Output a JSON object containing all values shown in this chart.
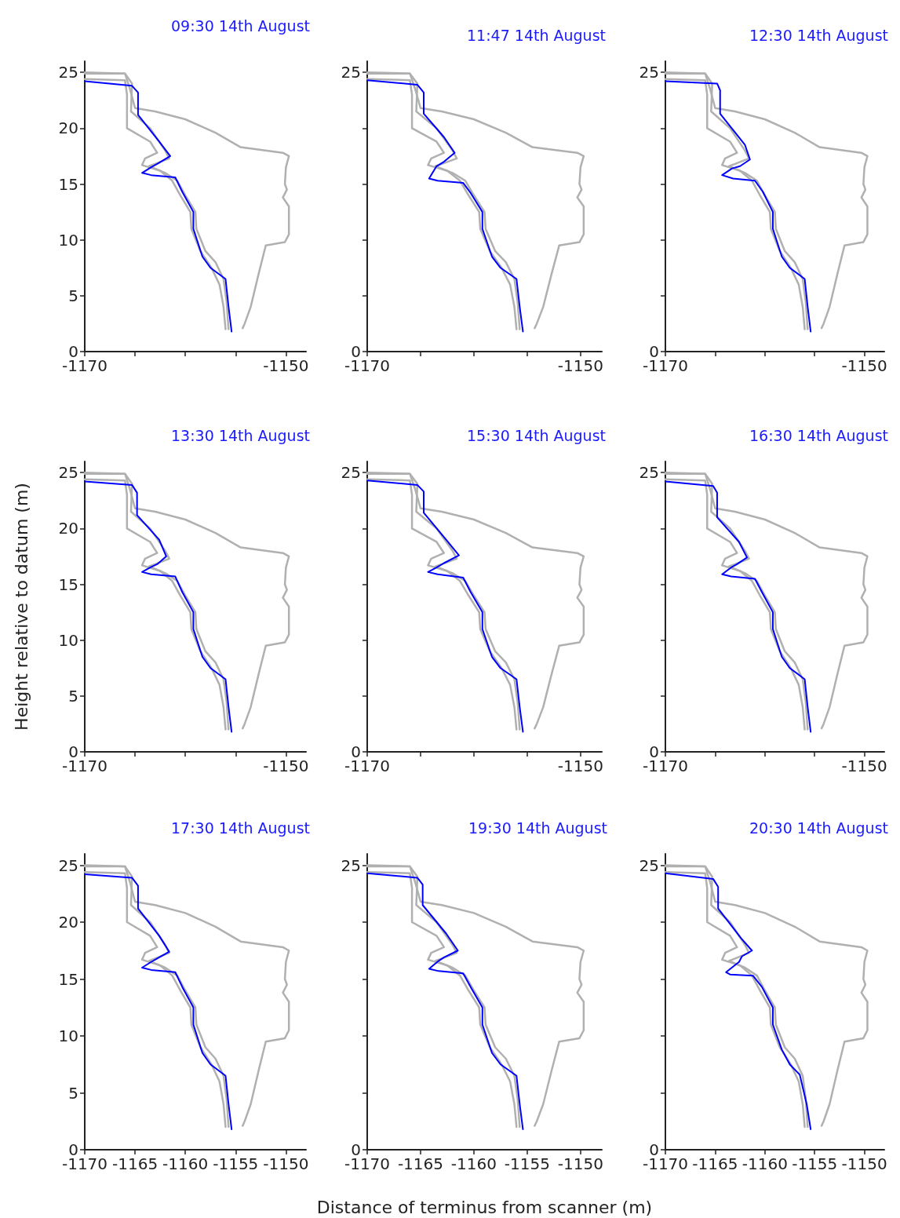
{
  "chart_data": [
    {
      "type": "line",
      "title": "09:30 14th August",
      "marker": "none",
      "xlim": [
        -1170,
        -1148
      ],
      "ylim": [
        0,
        26
      ],
      "xticks": [
        -1170,
        {
          "value": -1165,
          "label": null
        },
        {
          "value": -1160,
          "label": null
        },
        {
          "value": -1155,
          "label": null
        },
        -1150
      ],
      "yticks": [
        0,
        5,
        10,
        15,
        20,
        25
      ],
      "series": [
        {
          "color": "#b0b0b0",
          "x": [
            -1170,
            -1166,
            -1165.3,
            -1165.4,
            -1163.5,
            -1162,
            -1161.6,
            -1163,
            -1163.6,
            -1162,
            -1160.8,
            -1160,
            -1159,
            -1158.9,
            -1158,
            -1157,
            -1156.2,
            -1155.9,
            -1155.7
          ],
          "values": [
            24.9,
            24.9,
            24,
            21.5,
            20,
            18,
            17.3,
            16.8,
            16.6,
            16,
            15.3,
            14,
            12.5,
            11,
            9,
            8,
            6.5,
            4.5,
            2
          ]
        },
        {
          "color": "#b0b0b0",
          "x": [
            -1170,
            -1166,
            -1165.5,
            -1165,
            -1163,
            -1160,
            -1157,
            -1154.5,
            -1150.3,
            -1149.7,
            -1150,
            -1150.1,
            -1149.9,
            -1150.3,
            -1149.7,
            -1149.7,
            -1150.1,
            -1152,
            -1152.7,
            -1153.5,
            -1154.1,
            -1154.3
          ],
          "values": [
            25,
            24.9,
            23.5,
            21.8,
            21.5,
            20.8,
            19.6,
            18.3,
            17.8,
            17.5,
            16.5,
            15,
            14.5,
            13.8,
            13,
            10.5,
            9.8,
            9.5,
            7,
            4,
            2.5,
            2.1
          ]
        },
        {
          "color": "#b0b0b0",
          "x": [
            -1170,
            -1166,
            -1165.8,
            -1165.8,
            -1163.5,
            -1162.8,
            -1164,
            -1164.3,
            -1162.5,
            -1161.3,
            -1160.5,
            -1159.5,
            -1159.4,
            -1158.5,
            -1157.4,
            -1156.6,
            -1156.2,
            -1156
          ],
          "values": [
            24.4,
            24.3,
            23,
            20,
            18.8,
            17.8,
            17.3,
            16.7,
            16.2,
            15.3,
            14,
            12.5,
            11,
            9,
            7.5,
            6,
            4,
            2
          ]
        },
        {
          "color": "#0000ff",
          "x": [
            -1170,
            -1165.3,
            -1164.7,
            -1164.7,
            -1162.6,
            -1161.5,
            -1162.8,
            -1163.4,
            -1164.3,
            -1163.4,
            -1161,
            -1160.3,
            -1159.2,
            -1159.2,
            -1158.3,
            -1157.5,
            -1156,
            -1155.7,
            -1155.4
          ],
          "values": [
            24.2,
            23.8,
            23.2,
            21.2,
            18.8,
            17.5,
            16.8,
            16.5,
            16,
            15.8,
            15.6,
            14.3,
            12.5,
            11,
            8.5,
            7.5,
            6.5,
            4,
            1.8
          ]
        }
      ]
    },
    {
      "type": "line",
      "title": "11:47 14th August",
      "marker": "none",
      "xlim": [
        -1170,
        -1148
      ],
      "ylim": [
        0,
        26
      ],
      "xticks": [
        -1170,
        {
          "value": -1165,
          "label": null
        },
        {
          "value": -1160,
          "label": null
        },
        {
          "value": -1155,
          "label": null
        },
        -1150
      ],
      "yticks": [
        0,
        {
          "value": 5,
          "label": null
        },
        {
          "value": 10,
          "label": null
        },
        {
          "value": 15,
          "label": null
        },
        {
          "value": 20,
          "label": null
        },
        25
      ],
      "series": [
        {
          "color": "#b0b0b0",
          "x": [
            -1170,
            -1166,
            -1165.3,
            -1165.4,
            -1163.5,
            -1162,
            -1161.6,
            -1163,
            -1163.6,
            -1162,
            -1160.8,
            -1160,
            -1159,
            -1158.9,
            -1158,
            -1157,
            -1156.2,
            -1155.9,
            -1155.7
          ],
          "values": [
            24.9,
            24.9,
            24,
            21.5,
            20,
            18,
            17.3,
            16.8,
            16.6,
            16,
            15.3,
            14,
            12.5,
            11,
            9,
            8,
            6.5,
            4.5,
            2
          ]
        },
        {
          "color": "#b0b0b0",
          "x": [
            -1170,
            -1166,
            -1165.5,
            -1165,
            -1163,
            -1160,
            -1157,
            -1154.5,
            -1150.3,
            -1149.7,
            -1150,
            -1150.1,
            -1149.9,
            -1150.3,
            -1149.7,
            -1149.7,
            -1150.1,
            -1152,
            -1152.7,
            -1153.5,
            -1154.1,
            -1154.3
          ],
          "values": [
            25,
            24.9,
            23.5,
            21.8,
            21.5,
            20.8,
            19.6,
            18.3,
            17.8,
            17.5,
            16.5,
            15,
            14.5,
            13.8,
            13,
            10.5,
            9.8,
            9.5,
            7,
            4,
            2.5,
            2.1
          ]
        },
        {
          "color": "#b0b0b0",
          "x": [
            -1170,
            -1166,
            -1165.8,
            -1165.8,
            -1163.5,
            -1162.8,
            -1164,
            -1164.3,
            -1162.5,
            -1161.3,
            -1160.5,
            -1159.5,
            -1159.4,
            -1158.5,
            -1157.4,
            -1156.6,
            -1156.2,
            -1156
          ],
          "values": [
            24.4,
            24.3,
            23,
            20,
            18.8,
            17.8,
            17.3,
            16.7,
            16.2,
            15.3,
            14,
            12.5,
            11,
            9,
            7.5,
            6,
            4,
            2
          ]
        },
        {
          "color": "#0000ff",
          "x": [
            -1170,
            -1165.3,
            -1164.7,
            -1164.7,
            -1162.8,
            -1161.8,
            -1162.8,
            -1163.5,
            -1164.2,
            -1163.4,
            -1161,
            -1160.3,
            -1159.2,
            -1159.2,
            -1158.3,
            -1157.5,
            -1156,
            -1155.7,
            -1155.4
          ],
          "values": [
            24.3,
            23.9,
            23.2,
            21.3,
            19.2,
            17.8,
            17,
            16.6,
            15.5,
            15.3,
            15.1,
            14.2,
            12.5,
            11,
            8.5,
            7.5,
            6.5,
            4,
            1.8
          ]
        }
      ]
    },
    {
      "type": "line",
      "title": "12:30 14th August",
      "marker": "none",
      "xlim": [
        -1170,
        -1148
      ],
      "ylim": [
        0,
        26
      ],
      "xticks": [
        -1170,
        {
          "value": -1165,
          "label": null
        },
        {
          "value": -1160,
          "label": null
        },
        {
          "value": -1155,
          "label": null
        },
        -1150
      ],
      "yticks": [
        0,
        {
          "value": 5,
          "label": null
        },
        {
          "value": 10,
          "label": null
        },
        {
          "value": 15,
          "label": null
        },
        {
          "value": 20,
          "label": null
        },
        25
      ],
      "series": [
        {
          "color": "#b0b0b0",
          "x": [
            -1170,
            -1166,
            -1165.3,
            -1165.4,
            -1163.5,
            -1162,
            -1161.6,
            -1163,
            -1163.6,
            -1162,
            -1160.8,
            -1160,
            -1159,
            -1158.9,
            -1158,
            -1157,
            -1156.2,
            -1155.9,
            -1155.7
          ],
          "values": [
            24.9,
            24.9,
            24,
            21.5,
            20,
            18,
            17.3,
            16.8,
            16.6,
            16,
            15.3,
            14,
            12.5,
            11,
            9,
            8,
            6.5,
            4.5,
            2
          ]
        },
        {
          "color": "#b0b0b0",
          "x": [
            -1170,
            -1166,
            -1165.5,
            -1165,
            -1163,
            -1160,
            -1157,
            -1154.5,
            -1150.3,
            -1149.7,
            -1150,
            -1150.1,
            -1149.9,
            -1150.3,
            -1149.7,
            -1149.7,
            -1150.1,
            -1152,
            -1152.7,
            -1153.5,
            -1154.1,
            -1154.3
          ],
          "values": [
            25,
            24.9,
            23.5,
            21.8,
            21.5,
            20.8,
            19.6,
            18.3,
            17.8,
            17.5,
            16.5,
            15,
            14.5,
            13.8,
            13,
            10.5,
            9.8,
            9.5,
            7,
            4,
            2.5,
            2.1
          ]
        },
        {
          "color": "#b0b0b0",
          "x": [
            -1170,
            -1166,
            -1165.8,
            -1165.8,
            -1163.5,
            -1162.8,
            -1164,
            -1164.3,
            -1162.5,
            -1161.3,
            -1160.5,
            -1159.5,
            -1159.4,
            -1158.5,
            -1157.4,
            -1156.6,
            -1156.2,
            -1156
          ],
          "values": [
            24.4,
            24.3,
            23,
            20,
            18.8,
            17.8,
            17.3,
            16.7,
            16.2,
            15.3,
            14,
            12.5,
            11,
            9,
            7.5,
            6,
            4,
            2
          ]
        },
        {
          "color": "#0000ff",
          "x": [
            -1170,
            -1164.8,
            -1164.5,
            -1164.5,
            -1162,
            -1161.5,
            -1162.5,
            -1163.3,
            -1164.3,
            -1163.2,
            -1161,
            -1160.2,
            -1159.2,
            -1159.2,
            -1158.3,
            -1157.5,
            -1156,
            -1155.7,
            -1155.4
          ],
          "values": [
            24.2,
            24,
            23.4,
            21.3,
            18.5,
            17.2,
            16.6,
            16.4,
            15.8,
            15.5,
            15.3,
            14.3,
            12.5,
            11,
            8.5,
            7.5,
            6.5,
            4,
            1.8
          ]
        }
      ]
    },
    {
      "type": "line",
      "title": "13:30 14th August",
      "ylabel": "Height relative to datum (m)",
      "marker": "none",
      "xlim": [
        -1170,
        -1148
      ],
      "ylim": [
        0,
        26
      ],
      "xticks": [
        -1170,
        {
          "value": -1165,
          "label": null
        },
        {
          "value": -1160,
          "label": null
        },
        {
          "value": -1155,
          "label": null
        },
        -1150
      ],
      "yticks": [
        0,
        5,
        10,
        15,
        20,
        25
      ],
      "series": [
        {
          "color": "#b0b0b0",
          "x": [
            -1170,
            -1166,
            -1165.3,
            -1165.4,
            -1163.5,
            -1162,
            -1161.6,
            -1163,
            -1163.6,
            -1162,
            -1160.8,
            -1160,
            -1159,
            -1158.9,
            -1158,
            -1157,
            -1156.2,
            -1155.9,
            -1155.7
          ],
          "values": [
            24.9,
            24.9,
            24,
            21.5,
            20,
            18,
            17.3,
            16.8,
            16.6,
            16,
            15.3,
            14,
            12.5,
            11,
            9,
            8,
            6.5,
            4.5,
            2
          ]
        },
        {
          "color": "#b0b0b0",
          "x": [
            -1170,
            -1166,
            -1165.5,
            -1165,
            -1163,
            -1160,
            -1157,
            -1154.5,
            -1150.3,
            -1149.7,
            -1150,
            -1150.1,
            -1149.9,
            -1150.3,
            -1149.7,
            -1149.7,
            -1150.1,
            -1152,
            -1152.7,
            -1153.5,
            -1154.1,
            -1154.3
          ],
          "values": [
            25,
            24.9,
            23.5,
            21.8,
            21.5,
            20.8,
            19.6,
            18.3,
            17.8,
            17.5,
            16.5,
            15,
            14.5,
            13.8,
            13,
            10.5,
            9.8,
            9.5,
            7,
            4,
            2.5,
            2.1
          ]
        },
        {
          "color": "#b0b0b0",
          "x": [
            -1170,
            -1166,
            -1165.8,
            -1165.8,
            -1163.5,
            -1162.8,
            -1164,
            -1164.3,
            -1162.5,
            -1161.3,
            -1160.5,
            -1159.5,
            -1159.4,
            -1158.5,
            -1157.4,
            -1156.6,
            -1156.2,
            -1156
          ],
          "values": [
            24.4,
            24.3,
            23,
            20,
            18.8,
            17.8,
            17.3,
            16.7,
            16.2,
            15.3,
            14,
            12.5,
            11,
            9,
            7.5,
            6,
            4,
            2
          ]
        },
        {
          "color": "#0000ff",
          "x": [
            -1170,
            -1165.3,
            -1164.8,
            -1164.8,
            -1162.6,
            -1161.9,
            -1162.8,
            -1163.5,
            -1164.3,
            -1163.4,
            -1161,
            -1160.3,
            -1159.2,
            -1159.2,
            -1158.3,
            -1157.5,
            -1156,
            -1155.7,
            -1155.4
          ],
          "values": [
            24.2,
            23.9,
            23.2,
            21.2,
            19,
            17.5,
            16.8,
            16.5,
            16.1,
            15.9,
            15.7,
            14.3,
            12.5,
            11,
            8.5,
            7.5,
            6.5,
            4,
            1.8
          ]
        }
      ]
    },
    {
      "type": "line",
      "title": "15:30 14th August",
      "marker": "none",
      "xlim": [
        -1170,
        -1148
      ],
      "ylim": [
        0,
        26
      ],
      "xticks": [
        -1170,
        {
          "value": -1165,
          "label": null
        },
        {
          "value": -1160,
          "label": null
        },
        {
          "value": -1155,
          "label": null
        },
        -1150
      ],
      "yticks": [
        0,
        {
          "value": 5,
          "label": null
        },
        {
          "value": 10,
          "label": null
        },
        {
          "value": 15,
          "label": null
        },
        {
          "value": 20,
          "label": null
        },
        25
      ],
      "series": [
        {
          "color": "#b0b0b0",
          "x": [
            -1170,
            -1166,
            -1165.3,
            -1165.4,
            -1163.5,
            -1162,
            -1161.6,
            -1163,
            -1163.6,
            -1162,
            -1160.8,
            -1160,
            -1159,
            -1158.9,
            -1158,
            -1157,
            -1156.2,
            -1155.9,
            -1155.7
          ],
          "values": [
            24.9,
            24.9,
            24,
            21.5,
            20,
            18,
            17.3,
            16.8,
            16.6,
            16,
            15.3,
            14,
            12.5,
            11,
            9,
            8,
            6.5,
            4.5,
            2
          ]
        },
        {
          "color": "#b0b0b0",
          "x": [
            -1170,
            -1166,
            -1165.5,
            -1165,
            -1163,
            -1160,
            -1157,
            -1154.5,
            -1150.3,
            -1149.7,
            -1150,
            -1150.1,
            -1149.9,
            -1150.3,
            -1149.7,
            -1149.7,
            -1150.1,
            -1152,
            -1152.7,
            -1153.5,
            -1154.1,
            -1154.3
          ],
          "values": [
            25,
            24.9,
            23.5,
            21.8,
            21.5,
            20.8,
            19.6,
            18.3,
            17.8,
            17.5,
            16.5,
            15,
            14.5,
            13.8,
            13,
            10.5,
            9.8,
            9.5,
            7,
            4,
            2.5,
            2.1
          ]
        },
        {
          "color": "#b0b0b0",
          "x": [
            -1170,
            -1166,
            -1165.8,
            -1165.8,
            -1163.5,
            -1162.8,
            -1164,
            -1164.3,
            -1162.5,
            -1161.3,
            -1160.5,
            -1159.5,
            -1159.4,
            -1158.5,
            -1157.4,
            -1156.6,
            -1156.2,
            -1156
          ],
          "values": [
            24.4,
            24.3,
            23,
            20,
            18.8,
            17.8,
            17.3,
            16.7,
            16.2,
            15.3,
            14,
            12.5,
            11,
            9,
            7.5,
            6,
            4,
            2
          ]
        },
        {
          "color": "#0000ff",
          "x": [
            -1170,
            -1165.3,
            -1164.7,
            -1164.7,
            -1162.6,
            -1161.4,
            -1162.8,
            -1163.5,
            -1164.3,
            -1163.4,
            -1161,
            -1160.3,
            -1159.2,
            -1159.2,
            -1158.3,
            -1157.5,
            -1156,
            -1155.7,
            -1155.4
          ],
          "values": [
            24.3,
            23.9,
            23.3,
            21.4,
            19,
            17.6,
            16.9,
            16.5,
            16.1,
            15.9,
            15.6,
            14.3,
            12.5,
            11,
            8.5,
            7.5,
            6.5,
            4,
            1.8
          ]
        }
      ]
    },
    {
      "type": "line",
      "title": "16:30 14th August",
      "marker": "none",
      "xlim": [
        -1170,
        -1148
      ],
      "ylim": [
        0,
        26
      ],
      "xticks": [
        -1170,
        {
          "value": -1165,
          "label": null
        },
        {
          "value": -1160,
          "label": null
        },
        {
          "value": -1155,
          "label": null
        },
        -1150
      ],
      "yticks": [
        0,
        {
          "value": 5,
          "label": null
        },
        {
          "value": 10,
          "label": null
        },
        {
          "value": 15,
          "label": null
        },
        {
          "value": 20,
          "label": null
        },
        25
      ],
      "series": [
        {
          "color": "#b0b0b0",
          "x": [
            -1170,
            -1166,
            -1165.3,
            -1165.4,
            -1163.5,
            -1162,
            -1161.6,
            -1163,
            -1163.6,
            -1162,
            -1160.8,
            -1160,
            -1159,
            -1158.9,
            -1158,
            -1157,
            -1156.2,
            -1155.9,
            -1155.7
          ],
          "values": [
            24.9,
            24.9,
            24,
            21.5,
            20,
            18,
            17.3,
            16.8,
            16.6,
            16,
            15.3,
            14,
            12.5,
            11,
            9,
            8,
            6.5,
            4.5,
            2
          ]
        },
        {
          "color": "#b0b0b0",
          "x": [
            -1170,
            -1166,
            -1165.5,
            -1165,
            -1163,
            -1160,
            -1157,
            -1154.5,
            -1150.3,
            -1149.7,
            -1150,
            -1150.1,
            -1149.9,
            -1150.3,
            -1149.7,
            -1149.7,
            -1150.1,
            -1152,
            -1152.7,
            -1153.5,
            -1154.1,
            -1154.3
          ],
          "values": [
            25,
            24.9,
            23.5,
            21.8,
            21.5,
            20.8,
            19.6,
            18.3,
            17.8,
            17.5,
            16.5,
            15,
            14.5,
            13.8,
            13,
            10.5,
            9.8,
            9.5,
            7,
            4,
            2.5,
            2.1
          ]
        },
        {
          "color": "#b0b0b0",
          "x": [
            -1170,
            -1166,
            -1165.8,
            -1165.8,
            -1163.5,
            -1162.8,
            -1164,
            -1164.3,
            -1162.5,
            -1161.3,
            -1160.5,
            -1159.5,
            -1159.4,
            -1158.5,
            -1157.4,
            -1156.6,
            -1156.2,
            -1156
          ],
          "values": [
            24.4,
            24.3,
            23,
            20,
            18.8,
            17.8,
            17.3,
            16.7,
            16.2,
            15.3,
            14,
            12.5,
            11,
            9,
            7.5,
            6,
            4,
            2
          ]
        },
        {
          "color": "#0000ff",
          "x": [
            -1170,
            -1165.2,
            -1164.8,
            -1164.8,
            -1162.6,
            -1161.8,
            -1162.8,
            -1163.4,
            -1164.3,
            -1163.4,
            -1161,
            -1160.3,
            -1159.2,
            -1159.2,
            -1158.3,
            -1157.5,
            -1156,
            -1155.7,
            -1155.4
          ],
          "values": [
            24.2,
            23.8,
            23.2,
            21,
            18.8,
            17.4,
            16.8,
            16.5,
            15.9,
            15.7,
            15.5,
            14.3,
            12.5,
            11,
            8.5,
            7.5,
            6.5,
            4,
            1.8
          ]
        }
      ]
    },
    {
      "type": "line",
      "title": "17:30 14th August",
      "marker": "none",
      "xlim": [
        -1170,
        -1148
      ],
      "ylim": [
        0,
        26
      ],
      "xticks": [
        -1170,
        -1165,
        -1160,
        -1155,
        -1150
      ],
      "yticks": [
        0,
        5,
        10,
        15,
        20,
        25
      ],
      "series": [
        {
          "color": "#b0b0b0",
          "x": [
            -1170,
            -1166,
            -1165.3,
            -1165.4,
            -1163.5,
            -1162,
            -1161.6,
            -1163,
            -1163.6,
            -1162,
            -1160.8,
            -1160,
            -1159,
            -1158.9,
            -1158,
            -1157,
            -1156.2,
            -1155.9,
            -1155.7
          ],
          "values": [
            24.9,
            24.9,
            24,
            21.5,
            20,
            18,
            17.3,
            16.8,
            16.6,
            16,
            15.3,
            14,
            12.5,
            11,
            9,
            8,
            6.5,
            4.5,
            2
          ]
        },
        {
          "color": "#b0b0b0",
          "x": [
            -1170,
            -1166,
            -1165.5,
            -1165,
            -1163,
            -1160,
            -1157,
            -1154.5,
            -1150.3,
            -1149.7,
            -1150,
            -1150.1,
            -1149.9,
            -1150.3,
            -1149.7,
            -1149.7,
            -1150.1,
            -1152,
            -1152.7,
            -1153.5,
            -1154.1,
            -1154.3
          ],
          "values": [
            25,
            24.9,
            23.5,
            21.8,
            21.5,
            20.8,
            19.6,
            18.3,
            17.8,
            17.5,
            16.5,
            15,
            14.5,
            13.8,
            13,
            10.5,
            9.8,
            9.5,
            7,
            4,
            2.5,
            2.1
          ]
        },
        {
          "color": "#b0b0b0",
          "x": [
            -1170,
            -1166,
            -1165.8,
            -1165.8,
            -1163.5,
            -1162.8,
            -1164,
            -1164.3,
            -1162.5,
            -1161.3,
            -1160.5,
            -1159.5,
            -1159.4,
            -1158.5,
            -1157.4,
            -1156.6,
            -1156.2,
            -1156
          ],
          "values": [
            24.4,
            24.3,
            23,
            20,
            18.8,
            17.8,
            17.3,
            16.7,
            16.2,
            15.3,
            14,
            12.5,
            11,
            9,
            7.5,
            6,
            4,
            2
          ]
        },
        {
          "color": "#0000ff",
          "x": [
            -1170,
            -1165.3,
            -1164.7,
            -1164.7,
            -1162.6,
            -1161.6,
            -1162.8,
            -1163.4,
            -1164.3,
            -1163.4,
            -1161,
            -1160.3,
            -1159.2,
            -1159.2,
            -1158.3,
            -1157.5,
            -1156,
            -1155.7,
            -1155.4
          ],
          "values": [
            24.2,
            23.9,
            23.2,
            21.2,
            18.8,
            17.4,
            16.8,
            16.5,
            16,
            15.8,
            15.6,
            14.3,
            12.5,
            11,
            8.5,
            7.5,
            6.5,
            4,
            1.8
          ]
        }
      ]
    },
    {
      "type": "line",
      "title": "19:30 14th August",
      "xlabel": "Distance of terminus from scanner (m)",
      "marker": "none",
      "xlim": [
        -1170,
        -1148
      ],
      "ylim": [
        0,
        26
      ],
      "xticks": [
        -1170,
        -1165,
        -1160,
        -1155,
        -1150
      ],
      "yticks": [
        0,
        {
          "value": 5,
          "label": null
        },
        {
          "value": 10,
          "label": null
        },
        {
          "value": 15,
          "label": null
        },
        {
          "value": 20,
          "label": null
        },
        25
      ],
      "series": [
        {
          "color": "#b0b0b0",
          "x": [
            -1170,
            -1166,
            -1165.3,
            -1165.4,
            -1163.5,
            -1162,
            -1161.6,
            -1163,
            -1163.6,
            -1162,
            -1160.8,
            -1160,
            -1159,
            -1158.9,
            -1158,
            -1157,
            -1156.2,
            -1155.9,
            -1155.7
          ],
          "values": [
            24.9,
            24.9,
            24,
            21.5,
            20,
            18,
            17.3,
            16.8,
            16.6,
            16,
            15.3,
            14,
            12.5,
            11,
            9,
            8,
            6.5,
            4.5,
            2
          ]
        },
        {
          "color": "#b0b0b0",
          "x": [
            -1170,
            -1166,
            -1165.5,
            -1165,
            -1163,
            -1160,
            -1157,
            -1154.5,
            -1150.3,
            -1149.7,
            -1150,
            -1150.1,
            -1149.9,
            -1150.3,
            -1149.7,
            -1149.7,
            -1150.1,
            -1152,
            -1152.7,
            -1153.5,
            -1154.1,
            -1154.3
          ],
          "values": [
            25,
            24.9,
            23.5,
            21.8,
            21.5,
            20.8,
            19.6,
            18.3,
            17.8,
            17.5,
            16.5,
            15,
            14.5,
            13.8,
            13,
            10.5,
            9.8,
            9.5,
            7,
            4,
            2.5,
            2.1
          ]
        },
        {
          "color": "#b0b0b0",
          "x": [
            -1170,
            -1166,
            -1165.8,
            -1165.8,
            -1163.5,
            -1162.8,
            -1164,
            -1164.3,
            -1162.5,
            -1161.3,
            -1160.5,
            -1159.5,
            -1159.4,
            -1158.5,
            -1157.4,
            -1156.6,
            -1156.2,
            -1156
          ],
          "values": [
            24.4,
            24.3,
            23,
            20,
            18.8,
            17.8,
            17.3,
            16.7,
            16.2,
            15.3,
            14,
            12.5,
            11,
            9,
            7.5,
            6,
            4,
            2
          ]
        },
        {
          "color": "#0000ff",
          "x": [
            -1170,
            -1165.3,
            -1164.8,
            -1164.8,
            -1162.6,
            -1161.5,
            -1162.8,
            -1163.3,
            -1164.2,
            -1163.3,
            -1161,
            -1160.3,
            -1159.2,
            -1159.2,
            -1158.3,
            -1157.5,
            -1156,
            -1155.7,
            -1155.4
          ],
          "values": [
            24.3,
            23.9,
            23.3,
            21.5,
            19,
            17.5,
            16.9,
            16.6,
            15.9,
            15.7,
            15.5,
            14.3,
            12.5,
            11,
            8.5,
            7.5,
            6.5,
            4,
            1.8
          ]
        }
      ]
    },
    {
      "type": "line",
      "title": "20:30 14th August",
      "marker": "none",
      "xlim": [
        -1170,
        -1148
      ],
      "ylim": [
        0,
        26
      ],
      "xticks": [
        -1170,
        -1165,
        -1160,
        -1155,
        -1150
      ],
      "yticks": [
        0,
        {
          "value": 5,
          "label": null
        },
        {
          "value": 10,
          "label": null
        },
        {
          "value": 15,
          "label": null
        },
        {
          "value": 20,
          "label": null
        },
        25
      ],
      "series": [
        {
          "color": "#b0b0b0",
          "x": [
            -1170,
            -1166,
            -1165.3,
            -1165.4,
            -1163.5,
            -1162,
            -1161.6,
            -1163,
            -1163.6,
            -1162,
            -1160.8,
            -1160,
            -1159,
            -1158.9,
            -1158,
            -1157,
            -1156.2,
            -1155.9,
            -1155.7
          ],
          "values": [
            24.9,
            24.9,
            24,
            21.5,
            20,
            18,
            17.3,
            16.8,
            16.6,
            16,
            15.3,
            14,
            12.5,
            11,
            9,
            8,
            6.5,
            4.5,
            2
          ]
        },
        {
          "color": "#b0b0b0",
          "x": [
            -1170,
            -1166,
            -1165.5,
            -1165,
            -1163,
            -1160,
            -1157,
            -1154.5,
            -1150.3,
            -1149.7,
            -1150,
            -1150.1,
            -1149.9,
            -1150.3,
            -1149.7,
            -1149.7,
            -1150.1,
            -1152,
            -1152.7,
            -1153.5,
            -1154.1,
            -1154.3
          ],
          "values": [
            25,
            24.9,
            23.5,
            21.8,
            21.5,
            20.8,
            19.6,
            18.3,
            17.8,
            17.5,
            16.5,
            15,
            14.5,
            13.8,
            13,
            10.5,
            9.8,
            9.5,
            7,
            4,
            2.5,
            2.1
          ]
        },
        {
          "color": "#b0b0b0",
          "x": [
            -1170,
            -1166,
            -1165.8,
            -1165.8,
            -1163.5,
            -1162.8,
            -1164,
            -1164.3,
            -1162.5,
            -1161.3,
            -1160.5,
            -1159.5,
            -1159.4,
            -1158.5,
            -1157.4,
            -1156.6,
            -1156.2,
            -1156
          ],
          "values": [
            24.4,
            24.3,
            23,
            20,
            18.8,
            17.8,
            17.3,
            16.7,
            16.2,
            15.3,
            14,
            12.5,
            11,
            9,
            7.5,
            6,
            4,
            2
          ]
        },
        {
          "color": "#0000ff",
          "x": [
            -1170,
            -1165.2,
            -1164.7,
            -1164.7,
            -1162.4,
            -1161.3,
            -1162.3,
            -1162.6,
            -1163.9,
            -1163.5,
            -1161.2,
            -1160.3,
            -1159.2,
            -1159.2,
            -1158.3,
            -1157.5,
            -1156.5,
            -1155.8,
            -1155.4
          ],
          "values": [
            24.3,
            23.8,
            23.1,
            21.2,
            18.6,
            17.5,
            17,
            16.5,
            15.6,
            15.4,
            15.3,
            14.3,
            12.5,
            11,
            8.8,
            7.5,
            6.6,
            4,
            1.8
          ]
        }
      ]
    }
  ]
}
